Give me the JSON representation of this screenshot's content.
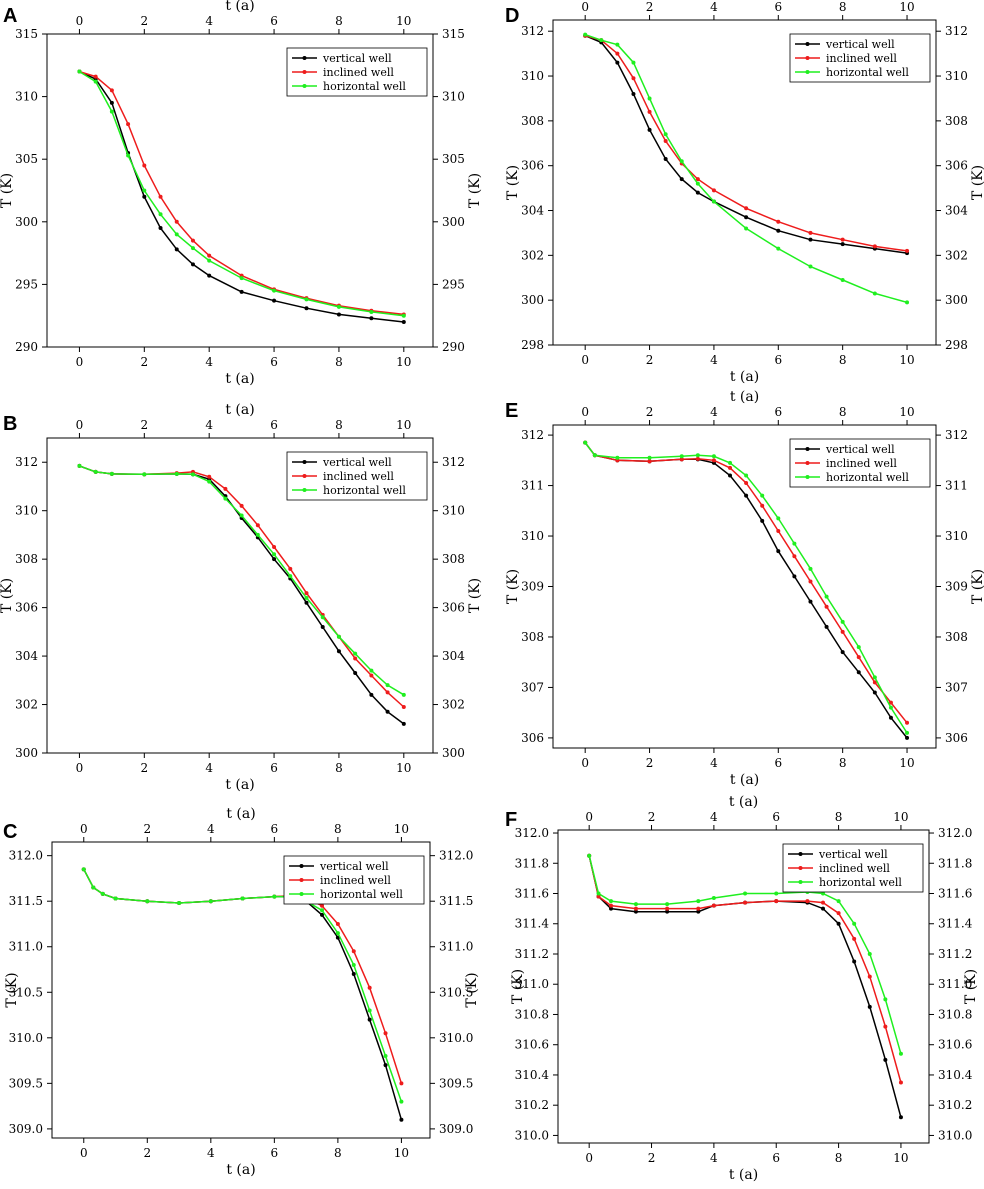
{
  "chart_data": [
    {
      "panel": "A",
      "type": "line",
      "xlabel": "t (a)",
      "ylabel": "T (K)",
      "xlim": [
        -1,
        10.9
      ],
      "ylim": [
        290,
        315
      ],
      "xticks": [
        0,
        2,
        4,
        6,
        8,
        10
      ],
      "yticks": [
        290,
        295,
        300,
        305,
        310,
        315
      ],
      "legend": "top-right",
      "series": [
        {
          "name": "vertical well",
          "color": "#000000",
          "x": [
            0,
            0.5,
            1,
            1.5,
            2,
            2.5,
            3,
            3.5,
            4,
            5,
            6,
            7,
            8,
            9,
            10
          ],
          "y": [
            312,
            311.4,
            309.5,
            305.5,
            302,
            299.5,
            297.8,
            296.6,
            295.7,
            294.4,
            293.7,
            293.1,
            292.6,
            292.3,
            292
          ]
        },
        {
          "name": "inclined well",
          "color": "#ee1c1c",
          "x": [
            0,
            0.5,
            1,
            1.5,
            2,
            2.5,
            3,
            3.5,
            4,
            5,
            6,
            7,
            8,
            9,
            10
          ],
          "y": [
            312,
            311.6,
            310.5,
            307.8,
            304.5,
            302,
            300,
            298.5,
            297.3,
            295.7,
            294.6,
            293.9,
            293.3,
            292.9,
            292.6
          ]
        },
        {
          "name": "horizontal well",
          "color": "#1fef1f",
          "x": [
            0,
            0.5,
            1,
            1.5,
            2,
            2.5,
            3,
            3.5,
            4,
            5,
            6,
            7,
            8,
            9,
            10
          ],
          "y": [
            312,
            311.2,
            308.8,
            305.3,
            302.5,
            300.6,
            299,
            297.9,
            296.9,
            295.5,
            294.5,
            293.8,
            293.2,
            292.8,
            292.5
          ]
        }
      ]
    },
    {
      "panel": "B",
      "type": "line",
      "xlabel": "t (a)",
      "ylabel": "T (K)",
      "xlim": [
        -1,
        10.9
      ],
      "ylim": [
        300,
        313
      ],
      "xticks": [
        0,
        2,
        4,
        6,
        8,
        10
      ],
      "yticks": [
        300,
        302,
        304,
        306,
        308,
        310,
        312
      ],
      "legend": "top-right",
      "series": [
        {
          "name": "vertical well",
          "color": "#000000",
          "x": [
            0,
            0.5,
            1,
            2,
            3,
            3.5,
            4,
            4.5,
            5,
            5.5,
            6,
            6.5,
            7,
            7.5,
            8,
            8.5,
            9,
            9.5,
            10
          ],
          "y": [
            311.85,
            311.6,
            311.52,
            311.5,
            311.52,
            311.5,
            311.3,
            310.6,
            309.7,
            308.9,
            308,
            307.2,
            306.2,
            305.2,
            304.2,
            303.3,
            302.4,
            301.7,
            301.2
          ]
        },
        {
          "name": "inclined well",
          "color": "#ee1c1c",
          "x": [
            0,
            0.5,
            1,
            2,
            3,
            3.5,
            4,
            4.5,
            5,
            5.5,
            6,
            6.5,
            7,
            7.5,
            8,
            8.5,
            9,
            9.5,
            10
          ],
          "y": [
            311.85,
            311.6,
            311.52,
            311.5,
            311.55,
            311.6,
            311.4,
            310.9,
            310.2,
            309.4,
            308.5,
            307.6,
            306.6,
            305.7,
            304.8,
            303.9,
            303.2,
            302.5,
            301.9
          ]
        },
        {
          "name": "horizontal well",
          "color": "#1fef1f",
          "x": [
            0,
            0.5,
            1,
            2,
            3,
            3.5,
            4,
            4.5,
            5,
            5.5,
            6,
            6.5,
            7,
            7.5,
            8,
            8.5,
            9,
            9.5,
            10
          ],
          "y": [
            311.85,
            311.6,
            311.52,
            311.5,
            311.52,
            311.5,
            311.2,
            310.5,
            309.8,
            309,
            308.2,
            307.3,
            306.4,
            305.6,
            304.8,
            304.1,
            303.4,
            302.8,
            302.4
          ]
        }
      ]
    },
    {
      "panel": "C",
      "type": "line",
      "xlabel": "t (a)",
      "ylabel": "T (K)",
      "xlim": [
        -1,
        10.9
      ],
      "ylim": [
        308.9,
        312.15
      ],
      "xticks": [
        0,
        2,
        4,
        6,
        8,
        10
      ],
      "yticks": [
        309.0,
        309.5,
        310.0,
        310.5,
        311.0,
        311.5,
        312.0
      ],
      "ytickdecimals": 1,
      "legend": "top-right",
      "series": [
        {
          "name": "vertical well",
          "color": "#000000",
          "x": [
            0,
            0.3,
            0.6,
            1,
            2,
            3,
            4,
            5,
            6,
            6.5,
            7,
            7.5,
            8,
            8.5,
            9,
            9.5,
            10
          ],
          "y": [
            311.85,
            311.65,
            311.58,
            311.53,
            311.5,
            311.48,
            311.5,
            311.53,
            311.55,
            311.55,
            311.5,
            311.35,
            311.1,
            310.7,
            310.2,
            309.7,
            309.1
          ]
        },
        {
          "name": "inclined well",
          "color": "#ee1c1c",
          "x": [
            0,
            0.3,
            0.6,
            1,
            2,
            3,
            4,
            5,
            6,
            6.5,
            7,
            7.5,
            8,
            8.5,
            9,
            9.5,
            10
          ],
          "y": [
            311.85,
            311.65,
            311.58,
            311.53,
            311.5,
            311.48,
            311.5,
            311.53,
            311.55,
            311.56,
            311.54,
            311.45,
            311.25,
            310.95,
            310.55,
            310.05,
            309.5
          ]
        },
        {
          "name": "horizontal well",
          "color": "#1fef1f",
          "x": [
            0,
            0.3,
            0.6,
            1,
            2,
            3,
            4,
            5,
            6,
            6.5,
            7,
            7.5,
            8,
            8.5,
            9,
            9.5,
            10
          ],
          "y": [
            311.85,
            311.65,
            311.58,
            311.53,
            311.5,
            311.48,
            311.5,
            311.53,
            311.55,
            311.55,
            311.5,
            311.4,
            311.15,
            310.8,
            310.3,
            309.8,
            309.3
          ]
        }
      ]
    },
    {
      "panel": "D",
      "type": "line",
      "xlabel": "t (a)",
      "ylabel": "T (K)",
      "xlim": [
        -1,
        10.9
      ],
      "ylim": [
        298,
        312.5
      ],
      "xticks": [
        0,
        2,
        4,
        6,
        8,
        10
      ],
      "yticks": [
        298,
        300,
        302,
        304,
        306,
        308,
        310,
        312
      ],
      "legend": "top-right",
      "series": [
        {
          "name": "vertical well",
          "color": "#000000",
          "x": [
            0,
            0.5,
            1,
            1.5,
            2,
            2.5,
            3,
            3.5,
            4,
            5,
            6,
            7,
            8,
            9,
            10
          ],
          "y": [
            311.8,
            311.5,
            310.6,
            309.2,
            307.6,
            306.3,
            305.4,
            304.8,
            304.4,
            303.7,
            303.1,
            302.7,
            302.5,
            302.3,
            302.1
          ]
        },
        {
          "name": "inclined well",
          "color": "#ee1c1c",
          "x": [
            0,
            0.5,
            1,
            1.5,
            2,
            2.5,
            3,
            3.5,
            4,
            5,
            6,
            7,
            8,
            9,
            10
          ],
          "y": [
            311.8,
            311.6,
            311,
            309.9,
            308.4,
            307.1,
            306.1,
            305.4,
            304.9,
            304.1,
            303.5,
            303,
            302.7,
            302.4,
            302.2
          ]
        },
        {
          "name": "horizontal well",
          "color": "#1fef1f",
          "x": [
            0,
            0.5,
            1,
            1.5,
            2,
            2.5,
            3,
            3.5,
            4,
            5,
            6,
            7,
            8,
            9,
            10
          ],
          "y": [
            311.85,
            311.6,
            311.4,
            310.6,
            309,
            307.4,
            306.2,
            305.2,
            304.4,
            303.2,
            302.3,
            301.5,
            300.9,
            300.3,
            299.9
          ]
        }
      ]
    },
    {
      "panel": "E",
      "type": "line",
      "xlabel": "t (a)",
      "ylabel": "T (K)",
      "xlim": [
        -1,
        10.9
      ],
      "ylim": [
        305.8,
        312.2
      ],
      "xticks": [
        0,
        2,
        4,
        6,
        8,
        10
      ],
      "yticks": [
        306,
        307,
        308,
        309,
        310,
        311,
        312
      ],
      "legend": "top-right",
      "series": [
        {
          "name": "vertical well",
          "color": "#000000",
          "x": [
            0,
            0.3,
            1,
            2,
            3,
            3.5,
            4,
            4.5,
            5,
            5.5,
            6,
            6.5,
            7,
            7.5,
            8,
            8.5,
            9,
            9.5,
            10
          ],
          "y": [
            311.85,
            311.6,
            311.5,
            311.48,
            311.52,
            311.52,
            311.45,
            311.2,
            310.8,
            310.3,
            309.7,
            309.2,
            308.7,
            308.2,
            307.7,
            307.3,
            306.9,
            306.4,
            306
          ]
        },
        {
          "name": "inclined well",
          "color": "#ee1c1c",
          "x": [
            0,
            0.3,
            1,
            2,
            3,
            3.5,
            4,
            4.5,
            5,
            5.5,
            6,
            6.5,
            7,
            7.5,
            8,
            8.5,
            9,
            9.5,
            10
          ],
          "y": [
            311.85,
            311.6,
            311.5,
            311.48,
            311.52,
            311.53,
            311.5,
            311.35,
            311.05,
            310.6,
            310.1,
            309.6,
            309.1,
            308.6,
            308.1,
            307.6,
            307.1,
            306.7,
            306.3
          ]
        },
        {
          "name": "horizontal well",
          "color": "#1fef1f",
          "x": [
            0,
            0.3,
            1,
            2,
            3,
            3.5,
            4,
            4.5,
            5,
            5.5,
            6,
            6.5,
            7,
            7.5,
            8,
            8.5,
            9,
            9.5,
            10
          ],
          "y": [
            311.85,
            311.6,
            311.55,
            311.55,
            311.58,
            311.6,
            311.58,
            311.45,
            311.2,
            310.8,
            310.35,
            309.85,
            309.35,
            308.8,
            308.3,
            307.8,
            307.2,
            306.6,
            306.1
          ]
        }
      ]
    },
    {
      "panel": "F",
      "type": "line",
      "xlabel": "t (a)",
      "ylabel": "T (K)",
      "xlim": [
        -1,
        10.9
      ],
      "ylim": [
        309.95,
        312.02
      ],
      "xticks": [
        0,
        2,
        4,
        6,
        8,
        10
      ],
      "yticks": [
        310.0,
        310.2,
        310.4,
        310.6,
        310.8,
        311.0,
        311.2,
        311.4,
        311.6,
        311.8,
        312.0
      ],
      "ytickdecimals": 1,
      "legend": "top-right",
      "series": [
        {
          "name": "vertical well",
          "color": "#000000",
          "x": [
            0,
            0.3,
            0.7,
            1.5,
            2.5,
            3.5,
            4,
            5,
            6,
            7,
            7.5,
            8,
            8.5,
            9,
            9.5,
            10
          ],
          "y": [
            311.85,
            311.58,
            311.5,
            311.48,
            311.48,
            311.48,
            311.52,
            311.54,
            311.55,
            311.54,
            311.5,
            311.4,
            311.15,
            310.85,
            310.5,
            310.12
          ]
        },
        {
          "name": "inclined well",
          "color": "#ee1c1c",
          "x": [
            0,
            0.3,
            0.7,
            1.5,
            2.5,
            3.5,
            4,
            5,
            6,
            7,
            7.5,
            8,
            8.5,
            9,
            9.5,
            10
          ],
          "y": [
            311.85,
            311.58,
            311.52,
            311.5,
            311.5,
            311.5,
            311.52,
            311.54,
            311.55,
            311.55,
            311.54,
            311.47,
            311.3,
            311.05,
            310.72,
            310.35
          ]
        },
        {
          "name": "horizontal well",
          "color": "#1fef1f",
          "x": [
            0,
            0.3,
            0.7,
            1.5,
            2.5,
            3.5,
            4,
            5,
            6,
            7,
            7.5,
            8,
            8.5,
            9,
            9.5,
            10
          ],
          "y": [
            311.85,
            311.6,
            311.55,
            311.53,
            311.53,
            311.55,
            311.57,
            311.6,
            311.6,
            311.61,
            311.6,
            311.55,
            311.4,
            311.2,
            310.9,
            310.54
          ]
        }
      ]
    }
  ]
}
